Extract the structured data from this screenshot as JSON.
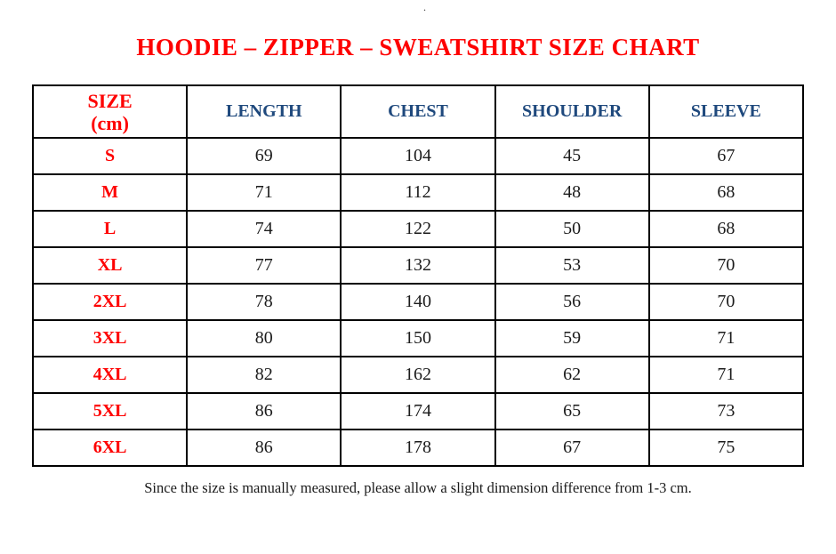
{
  "page": {
    "stray_dot": ".",
    "title": "HOODIE – ZIPPER – SWEATSHIRT SIZE CHART",
    "footnote": "Since the size is manually measured, please allow a slight dimension difference from 1-3 cm."
  },
  "colors": {
    "title_red": "#fe0000",
    "header_blue": "#1f497d",
    "size_label_red": "#fe0000",
    "value_black": "#1b1b1b",
    "border_black": "#000000",
    "background": "#ffffff"
  },
  "size_chart": {
    "unit": "cm",
    "header": {
      "size_label_line1": "SIZE",
      "size_label_line2": "(cm)",
      "columns": [
        "LENGTH",
        "CHEST",
        "SHOULDER",
        "SLEEVE"
      ]
    },
    "rows": [
      {
        "size": "S",
        "length": "69",
        "chest": "104",
        "shoulder": "45",
        "sleeve": "67"
      },
      {
        "size": "M",
        "length": "71",
        "chest": "112",
        "shoulder": "48",
        "sleeve": "68"
      },
      {
        "size": "L",
        "length": "74",
        "chest": "122",
        "shoulder": "50",
        "sleeve": "68"
      },
      {
        "size": "XL",
        "length": "77",
        "chest": "132",
        "shoulder": "53",
        "sleeve": "70"
      },
      {
        "size": "2XL",
        "length": "78",
        "chest": "140",
        "shoulder": "56",
        "sleeve": "70"
      },
      {
        "size": "3XL",
        "length": "80",
        "chest": "150",
        "shoulder": "59",
        "sleeve": "71"
      },
      {
        "size": "4XL",
        "length": "82",
        "chest": "162",
        "shoulder": "62",
        "sleeve": "71"
      },
      {
        "size": "5XL",
        "length": "86",
        "chest": "174",
        "shoulder": "65",
        "sleeve": "73"
      },
      {
        "size": "6XL",
        "length": "86",
        "chest": "178",
        "shoulder": "67",
        "sleeve": "75"
      }
    ]
  }
}
